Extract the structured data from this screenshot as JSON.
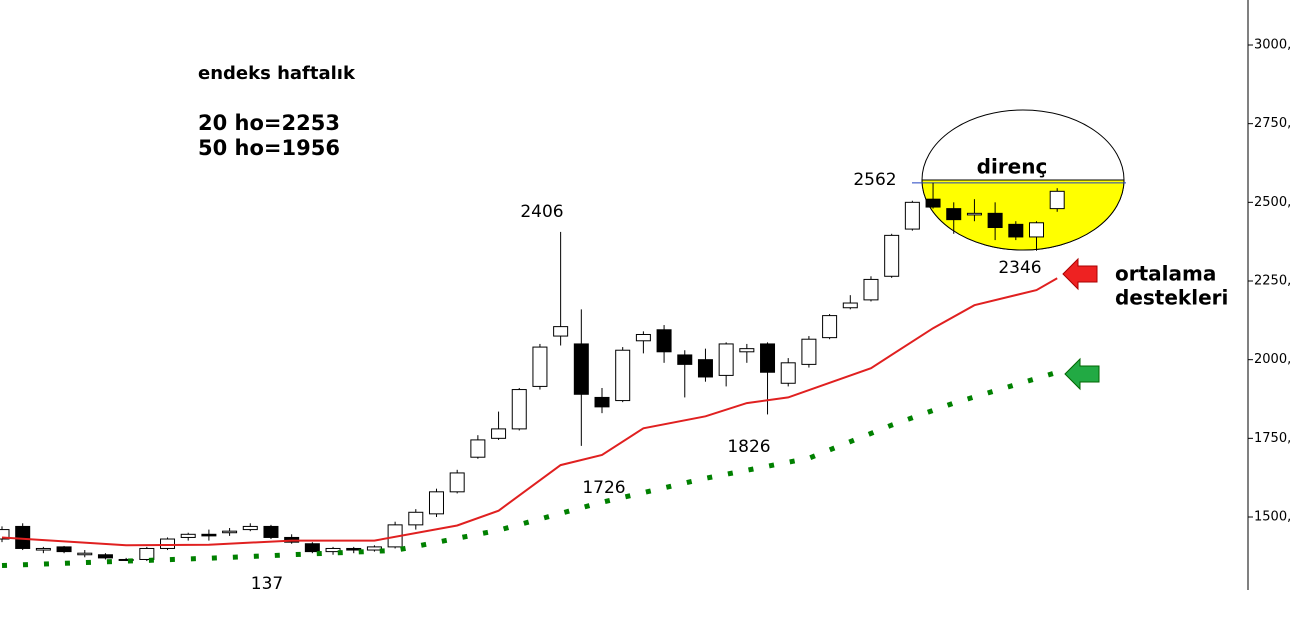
{
  "chart_data": {
    "type": "candlestick",
    "open": [
      1430,
      1470,
      1395,
      1405,
      1380,
      1380,
      1365,
      1365,
      1400,
      1435,
      1445,
      1450,
      1460,
      1470,
      1435,
      1415,
      1390,
      1400,
      1395,
      1405,
      1475,
      1510,
      1580,
      1690,
      1750,
      1780,
      1915,
      2075,
      2050,
      1880,
      1870,
      2060,
      2095,
      2015,
      2000,
      1950,
      2025,
      2050,
      1925,
      1985,
      2070,
      2165,
      2190,
      2265,
      2415,
      2510,
      2480,
      2460,
      2465,
      2430,
      2390,
      2480
    ],
    "high": [
      1470,
      1480,
      1405,
      1408,
      1395,
      1385,
      1370,
      1405,
      1435,
      1450,
      1460,
      1465,
      1480,
      1475,
      1445,
      1420,
      1405,
      1405,
      1410,
      1485,
      1525,
      1590,
      1650,
      1760,
      1835,
      1910,
      2050,
      2406,
      2160,
      1910,
      2040,
      2090,
      2110,
      2030,
      2035,
      2055,
      2050,
      2055,
      2005,
      2075,
      2145,
      2205,
      2265,
      2400,
      2505,
      2562,
      2500,
      2510,
      2500,
      2440,
      2440,
      2545
    ],
    "low": [
      1420,
      1395,
      1385,
      1385,
      1372,
      1365,
      1360,
      1360,
      1395,
      1425,
      1425,
      1440,
      1455,
      1430,
      1415,
      1385,
      1380,
      1385,
      1390,
      1400,
      1460,
      1500,
      1575,
      1685,
      1745,
      1775,
      1905,
      2045,
      1726,
      1830,
      1865,
      2020,
      1990,
      1880,
      1930,
      1915,
      1990,
      1826,
      1915,
      1975,
      2065,
      2160,
      2185,
      2260,
      2410,
      2480,
      2400,
      2440,
      2380,
      2380,
      2346,
      2470
    ],
    "close": [
      1460,
      1400,
      1400,
      1390,
      1385,
      1370,
      1362,
      1400,
      1430,
      1445,
      1440,
      1455,
      1470,
      1435,
      1420,
      1390,
      1400,
      1395,
      1405,
      1475,
      1515,
      1580,
      1640,
      1745,
      1780,
      1905,
      2040,
      2105,
      1890,
      1850,
      2030,
      2080,
      2025,
      1985,
      1945,
      2050,
      2035,
      1960,
      1990,
      2065,
      2140,
      2180,
      2255,
      2395,
      2500,
      2485,
      2445,
      2465,
      2420,
      2390,
      2435,
      2535
    ],
    "lines": [
      {
        "color": "#e02020",
        "style": "solid",
        "x": [
          0,
          6,
          10,
          14,
          18,
          22,
          24,
          27,
          29,
          31,
          34,
          36,
          38,
          42,
          45,
          47,
          50,
          51
        ],
        "values": [
          1435,
          1410,
          1412,
          1425,
          1425,
          1473,
          1520,
          1665,
          1697,
          1782,
          1820,
          1862,
          1880,
          1973,
          2100,
          2173,
          2221,
          2259
        ]
      },
      {
        "color": "#008000",
        "style": "dotted",
        "x": [
          0,
          10,
          19,
          24,
          29,
          34,
          39,
          43,
          46,
          51
        ],
        "values": [
          1346,
          1369,
          1394,
          1458,
          1547,
          1623,
          1687,
          1792,
          1862,
          1960
        ]
      }
    ],
    "resistance": 2562,
    "ylim": [
      1268,
      3143
    ],
    "yticks": [
      {
        "value": 1500,
        "label": "1500,"
      },
      {
        "value": 1750,
        "label": "1750,"
      },
      {
        "value": 2000,
        "label": "2000,"
      },
      {
        "value": 2250,
        "label": "2250,"
      },
      {
        "value": 2500,
        "label": "2500,"
      },
      {
        "value": 2750,
        "label": "2750,"
      },
      {
        "value": 3000,
        "label": "3000,"
      }
    ],
    "annotations": [
      "endeks haftalık",
      "20 ho=2253",
      "50 ho=1956",
      "2406",
      "2562",
      "direnç",
      "2346",
      "1726",
      "1826",
      "137",
      "ortalama",
      "destekleri"
    ]
  }
}
